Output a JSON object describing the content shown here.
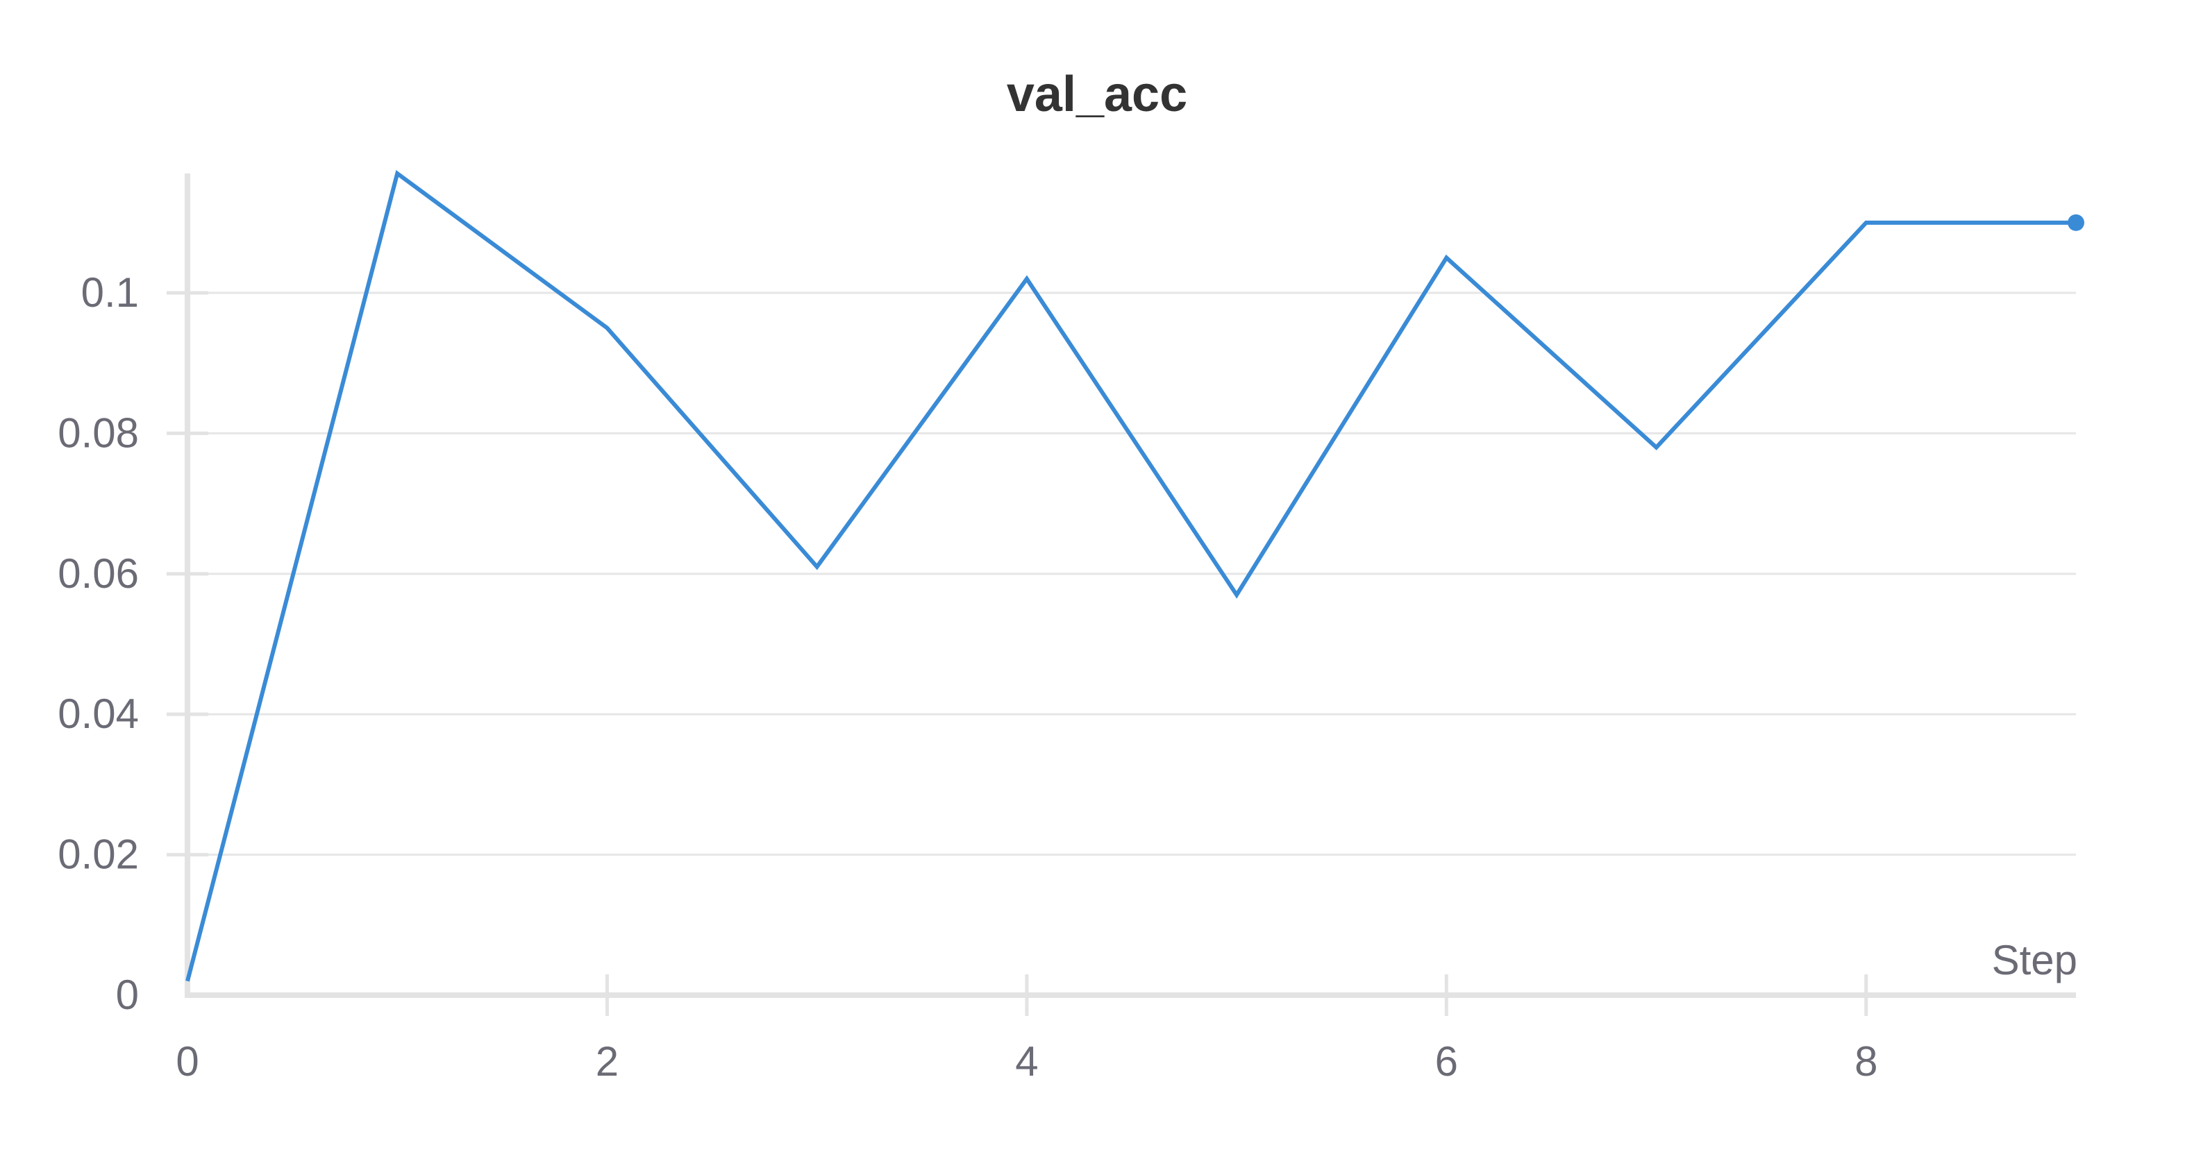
{
  "chart_data": {
    "type": "line",
    "title": "val_acc",
    "xlabel": "Step",
    "ylabel": "",
    "x": [
      0,
      1,
      2,
      3,
      4,
      5,
      6,
      7,
      8,
      9
    ],
    "series": [
      {
        "values": [
          0.002,
          0.117,
          0.095,
          0.061,
          0.102,
          0.057,
          0.105,
          0.078,
          0.11,
          0.11
        ],
        "color": "#3a8bd6"
      }
    ],
    "xlim": [
      0,
      9
    ],
    "ylim": [
      0,
      0.117
    ],
    "xticks": [
      0,
      2,
      4,
      6,
      8
    ],
    "xtick_labels": [
      "0",
      "2",
      "4",
      "6",
      "8"
    ],
    "yticks": [
      0,
      0.02,
      0.04,
      0.06,
      0.08,
      0.1
    ],
    "ytick_labels": [
      "0",
      "0.02",
      "0.04",
      "0.06",
      "0.08",
      "0.1"
    ],
    "grid": true,
    "legend": false,
    "last_point_marker": true
  }
}
